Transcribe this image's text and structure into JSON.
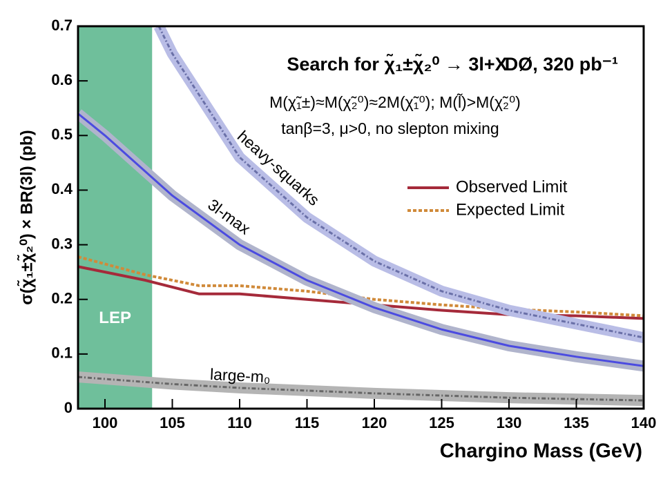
{
  "chart_data": {
    "type": "line",
    "title": "Search for χ̃₁±χ̃₂⁰ → 3l+X",
    "experiment": "DØ, 320 pb⁻¹",
    "subtitle": [
      "M(χ̃₁±)≈M(χ̃₂⁰)≈2M(χ̃₁⁰); M(l̃)>M(χ̃₂⁰)",
      "tanβ=3, μ>0, no slepton mixing"
    ],
    "x_label": "Chargino Mass (GeV)",
    "y_label": "σ(χ̃₁±χ̃₂⁰) × BR(3l) (pb)",
    "xlim": [
      98,
      140
    ],
    "ylim": [
      0,
      0.7
    ],
    "xticks": [
      100,
      105,
      110,
      115,
      120,
      125,
      130,
      135,
      140
    ],
    "yticks": [
      0,
      0.1,
      0.2,
      0.3,
      0.4,
      0.5,
      0.6,
      0.7
    ],
    "excluded_region": {
      "label": "LEP",
      "x": [
        98,
        103.5
      ],
      "color": "#6fbf9b"
    },
    "series": [
      {
        "name": "Observed Limit",
        "color": "#a52a3a",
        "dash": false,
        "band": false,
        "x": [
          98,
          103,
          107,
          110,
          115,
          120,
          125,
          130,
          135,
          140
        ],
        "values": [
          0.26,
          0.235,
          0.21,
          0.21,
          0.2,
          0.19,
          0.18,
          0.172,
          0.17,
          0.165
        ]
      },
      {
        "name": "Expected Limit",
        "color": "#d08a3a",
        "dash": true,
        "band": false,
        "x": [
          98,
          103,
          107,
          110,
          115,
          120,
          125,
          130,
          135,
          140
        ],
        "values": [
          0.278,
          0.245,
          0.225,
          0.225,
          0.215,
          0.2,
          0.19,
          0.182,
          0.177,
          0.17
        ]
      },
      {
        "name": "heavy-squarks",
        "color": "#6a70a8",
        "band_color": "#b9bde6",
        "dash": true,
        "band": true,
        "x": [
          104,
          105,
          110,
          115,
          120,
          125,
          130,
          135,
          140
        ],
        "values": [
          0.7,
          0.65,
          0.46,
          0.35,
          0.27,
          0.215,
          0.18,
          0.155,
          0.13
        ]
      },
      {
        "name": "3l-max",
        "color": "#4b4be0",
        "band_color": "#b0b4cc",
        "dash": false,
        "band": true,
        "x": [
          98,
          100,
          105,
          110,
          115,
          120,
          125,
          130,
          135,
          140
        ],
        "values": [
          0.54,
          0.5,
          0.39,
          0.3,
          0.235,
          0.185,
          0.145,
          0.115,
          0.095,
          0.078
        ]
      },
      {
        "name": "large-m₀",
        "color": "#666666",
        "band_color": "#b4b4b4",
        "dash": true,
        "band": true,
        "x": [
          98,
          105,
          110,
          120,
          130,
          140
        ],
        "values": [
          0.058,
          0.045,
          0.038,
          0.028,
          0.02,
          0.015
        ]
      }
    ]
  }
}
